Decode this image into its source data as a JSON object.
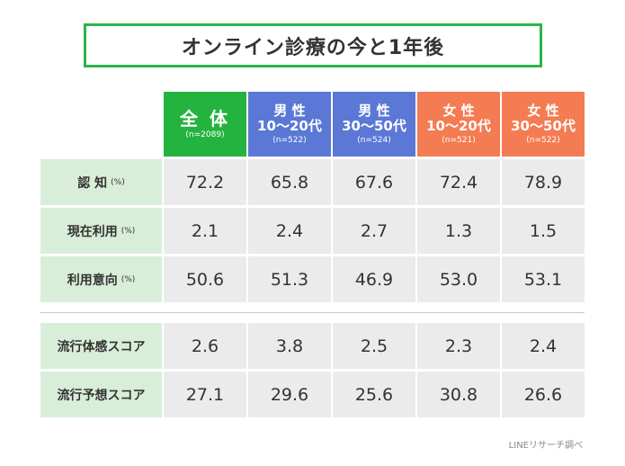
{
  "title": "オンライン診療の今と1年後",
  "colors": {
    "title_border": "#2cb54a",
    "all": "#25b33f",
    "male": "#5b78d6",
    "female": "#f47c52",
    "row_label_bg": "#d9eed9",
    "cell_bg": "#ebebeb"
  },
  "chart_data": {
    "type": "table",
    "columns": [
      {
        "main": "全 体",
        "sub": "",
        "n": "(n=2089)",
        "group": "all"
      },
      {
        "main": "男 性",
        "sub": "10〜20代",
        "n": "(n=522)",
        "group": "male"
      },
      {
        "main": "男 性",
        "sub": "30〜50代",
        "n": "(n=524)",
        "group": "male"
      },
      {
        "main": "女 性",
        "sub": "10〜20代",
        "n": "(n=521)",
        "group": "female"
      },
      {
        "main": "女 性",
        "sub": "30〜50代",
        "n": "(n=522)",
        "group": "female"
      }
    ],
    "rows": [
      {
        "label": "認 知",
        "unit": "(%)",
        "values": [
          "72.2",
          "65.8",
          "67.6",
          "72.4",
          "78.9"
        ]
      },
      {
        "label": "現在利用",
        "unit": "(%)",
        "values": [
          "2.1",
          "2.4",
          "2.7",
          "1.3",
          "1.5"
        ]
      },
      {
        "label": "利用意向",
        "unit": "(%)",
        "values": [
          "50.6",
          "51.3",
          "46.9",
          "53.0",
          "53.1"
        ]
      },
      {
        "label": "流行体感スコア",
        "unit": "",
        "values": [
          "2.6",
          "3.8",
          "2.5",
          "2.3",
          "2.4"
        ]
      },
      {
        "label": "流行予想スコア",
        "unit": "",
        "values": [
          "27.1",
          "29.6",
          "25.6",
          "30.8",
          "26.6"
        ]
      }
    ]
  },
  "source": "LINEリサーチ調べ"
}
